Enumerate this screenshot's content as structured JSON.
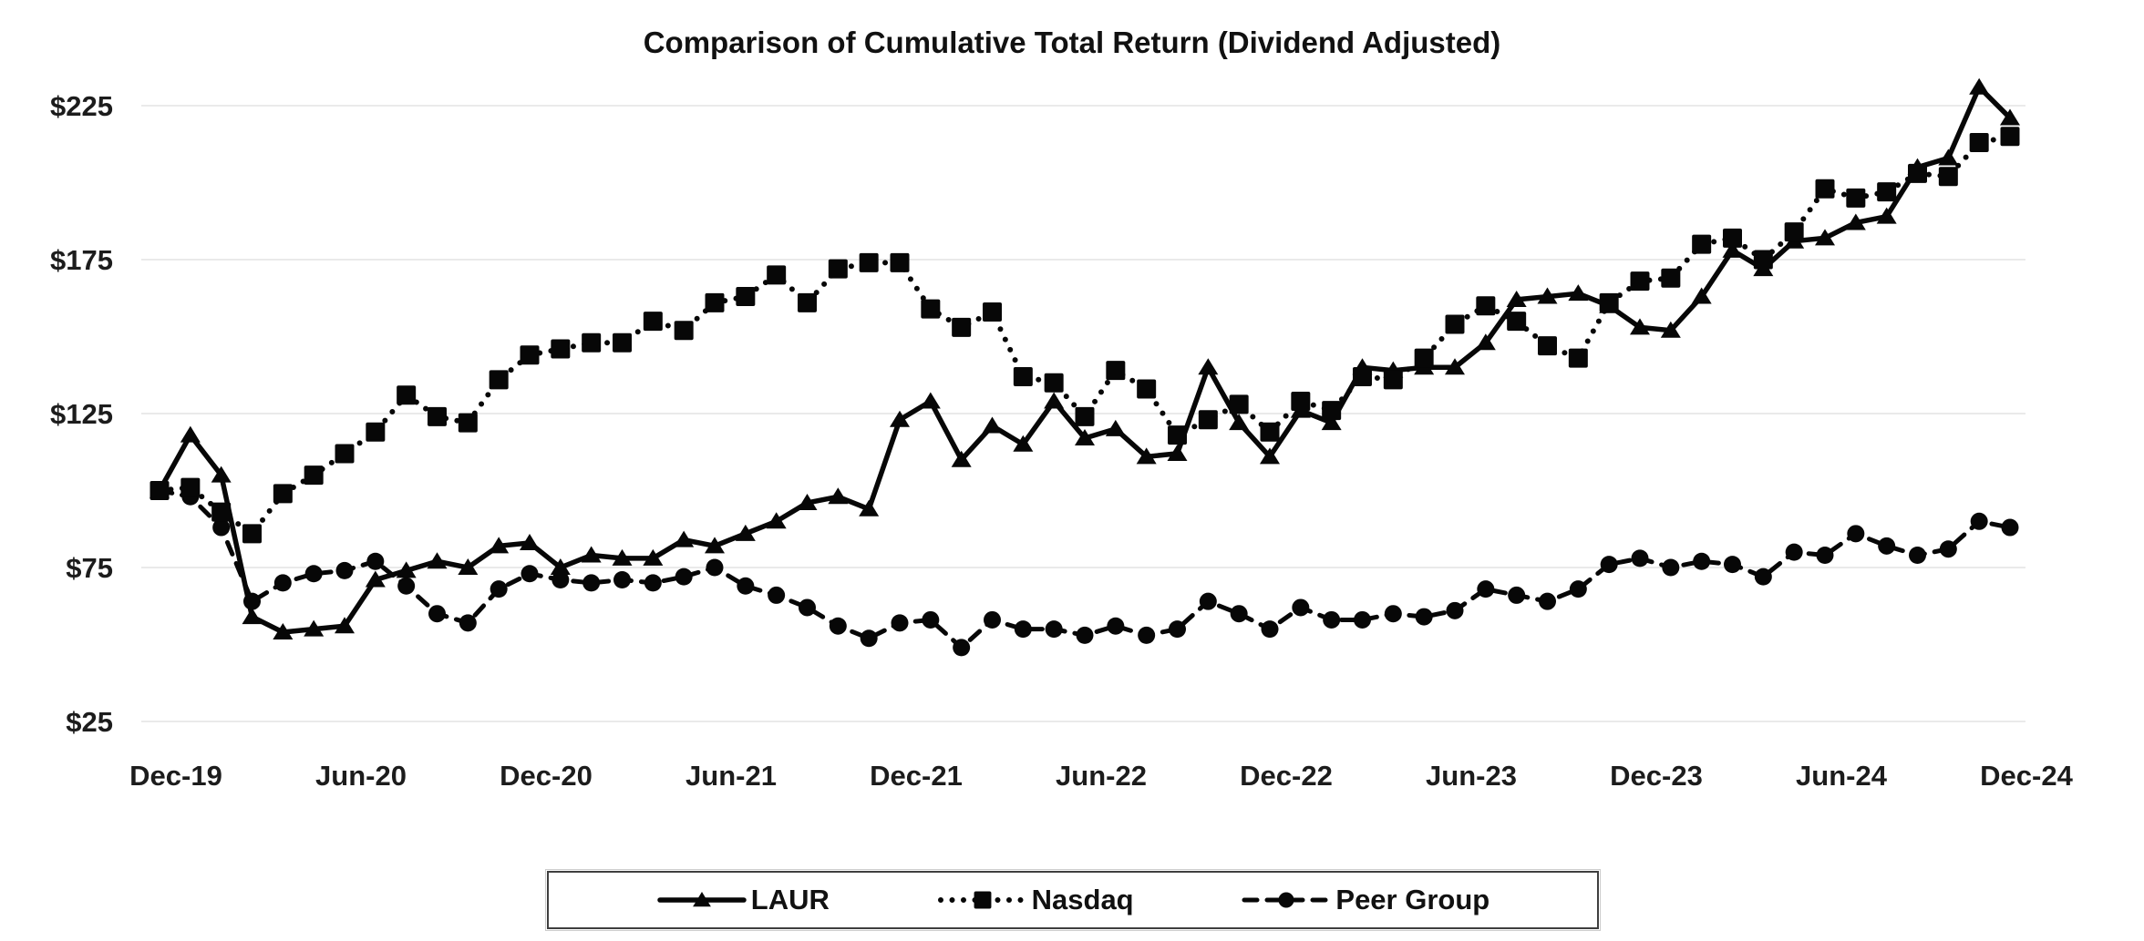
{
  "title": "Comparison of Cumulative Total Return (Dividend Adjusted)",
  "chart_data": {
    "type": "line",
    "title": "Comparison of Cumulative Total Return (Dividend Adjusted)",
    "xlabel": "",
    "ylabel": "",
    "x": [
      "Dec-19",
      "Jan-20",
      "Feb-20",
      "Mar-20",
      "Apr-20",
      "May-20",
      "Jun-20",
      "Jul-20",
      "Aug-20",
      "Sep-20",
      "Oct-20",
      "Nov-20",
      "Dec-20",
      "Jan-21",
      "Feb-21",
      "Mar-21",
      "Apr-21",
      "May-21",
      "Jun-21",
      "Jul-21",
      "Aug-21",
      "Sep-21",
      "Oct-21",
      "Nov-21",
      "Dec-21",
      "Jan-22",
      "Feb-22",
      "Mar-22",
      "Apr-22",
      "May-22",
      "Jun-22",
      "Jul-22",
      "Aug-22",
      "Sep-22",
      "Oct-22",
      "Nov-22",
      "Dec-22",
      "Jan-23",
      "Feb-23",
      "Mar-23",
      "Apr-23",
      "May-23",
      "Jun-23",
      "Jul-23",
      "Aug-23",
      "Sep-23",
      "Oct-23",
      "Nov-23",
      "Dec-23",
      "Jan-24",
      "Feb-24",
      "Mar-24",
      "Apr-24",
      "May-24",
      "Jun-24",
      "Jul-24",
      "Aug-24",
      "Sep-24",
      "Oct-24",
      "Nov-24",
      "Dec-24"
    ],
    "x_tick_labels": [
      "Dec-19",
      "Jun-20",
      "Dec-20",
      "Jun-21",
      "Dec-21",
      "Jun-22",
      "Dec-22",
      "Jun-23",
      "Dec-23",
      "Jun-24",
      "Dec-24"
    ],
    "y_ticks": [
      25,
      75,
      125,
      175,
      225
    ],
    "y_tick_prefix": "$",
    "ylim": [
      25,
      235
    ],
    "grid": "horizontal",
    "legend_position": "bottom-center-boxed",
    "series": [
      {
        "name": "LAUR",
        "marker": "triangle",
        "line": "solid",
        "values": [
          100,
          118,
          105,
          59,
          54,
          55,
          56,
          71,
          74,
          77,
          75,
          82,
          83,
          75,
          79,
          78,
          78,
          84,
          82,
          86,
          90,
          96,
          98,
          94,
          123,
          129,
          110,
          121,
          115,
          129,
          117,
          120,
          111,
          112,
          140,
          122,
          111,
          126,
          122,
          140,
          139,
          140,
          140,
          148,
          162,
          163,
          164,
          160,
          153,
          152,
          163,
          178,
          172,
          181,
          182,
          187,
          189,
          205,
          208,
          231,
          221
        ]
      },
      {
        "name": "Nasdaq",
        "marker": "square",
        "line": "dotted",
        "values": [
          100,
          101,
          93,
          86,
          99,
          105,
          112,
          119,
          131,
          124,
          122,
          136,
          144,
          146,
          148,
          148,
          155,
          152,
          161,
          163,
          170,
          161,
          172,
          174,
          174,
          159,
          153,
          158,
          137,
          135,
          124,
          139,
          133,
          118,
          123,
          128,
          119,
          129,
          126,
          137,
          136,
          143,
          154,
          160,
          155,
          147,
          143,
          161,
          168,
          169,
          180,
          182,
          175,
          184,
          198,
          195,
          197,
          203,
          202,
          213,
          215
        ]
      },
      {
        "name": "Peer Group",
        "marker": "circle",
        "line": "dashed",
        "values": [
          100,
          98,
          88,
          64,
          70,
          73,
          74,
          77,
          69,
          60,
          57,
          68,
          73,
          71,
          70,
          71,
          70,
          72,
          75,
          69,
          66,
          62,
          56,
          52,
          57,
          58,
          49,
          58,
          55,
          55,
          53,
          56,
          53,
          55,
          64,
          60,
          55,
          62,
          58,
          58,
          60,
          59,
          61,
          68,
          66,
          64,
          68,
          76,
          78,
          75,
          77,
          76,
          72,
          80,
          79,
          86,
          82,
          79,
          81,
          90,
          88
        ]
      }
    ],
    "colors": {
      "series": "#070707",
      "grid": "#eaeaea",
      "text": "#1c1c1c",
      "background": "#ffffff"
    }
  }
}
